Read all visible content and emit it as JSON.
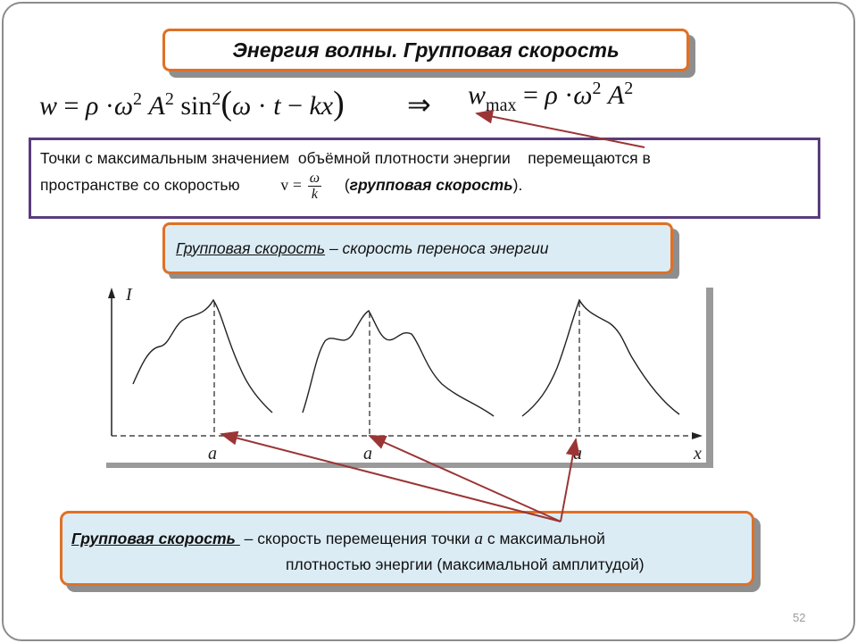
{
  "slide": {
    "title": "Энергия волны. Групповая скорость",
    "page_number": "52"
  },
  "formula": {
    "w": "w",
    "equals": "=",
    "rho": "ρ",
    "omega": "ω",
    "squared": "2",
    "A": "A",
    "sin": "sin",
    "t": "t",
    "minus": "−",
    "kx": "kx",
    "implies": "⇒",
    "wmax_sub": "max"
  },
  "text_box": {
    "line1": "Точки с максимальным значением  объёмной плотности энергии    перемещаются в",
    "line2_a": "пространстве со скоростью",
    "v": "v",
    "frac_num": "ω",
    "frac_den": "k",
    "line2_b_open": "(",
    "line2_b_bold": "групповая скорость",
    "line2_b_close": ")."
  },
  "definition1": {
    "term": "Групповая скорость ",
    "rest": " – скорость переноса энергии"
  },
  "graph": {
    "ylabel": "I",
    "xlabel": "x",
    "marks": [
      "a",
      "a",
      "a"
    ]
  },
  "definition2": {
    "term": "Групповая скорость ",
    "rest_a": " – скорость перемещения точки ",
    "a": "a",
    "rest_b": " с максимальной",
    "line2": "плотностью энергии (максимальной амплитудой)"
  },
  "colors": {
    "orange_border": "#e07025",
    "purple_border": "#5a3c7c",
    "light_blue_fill": "#dcecf5",
    "arrow_red": "#9b3535"
  }
}
